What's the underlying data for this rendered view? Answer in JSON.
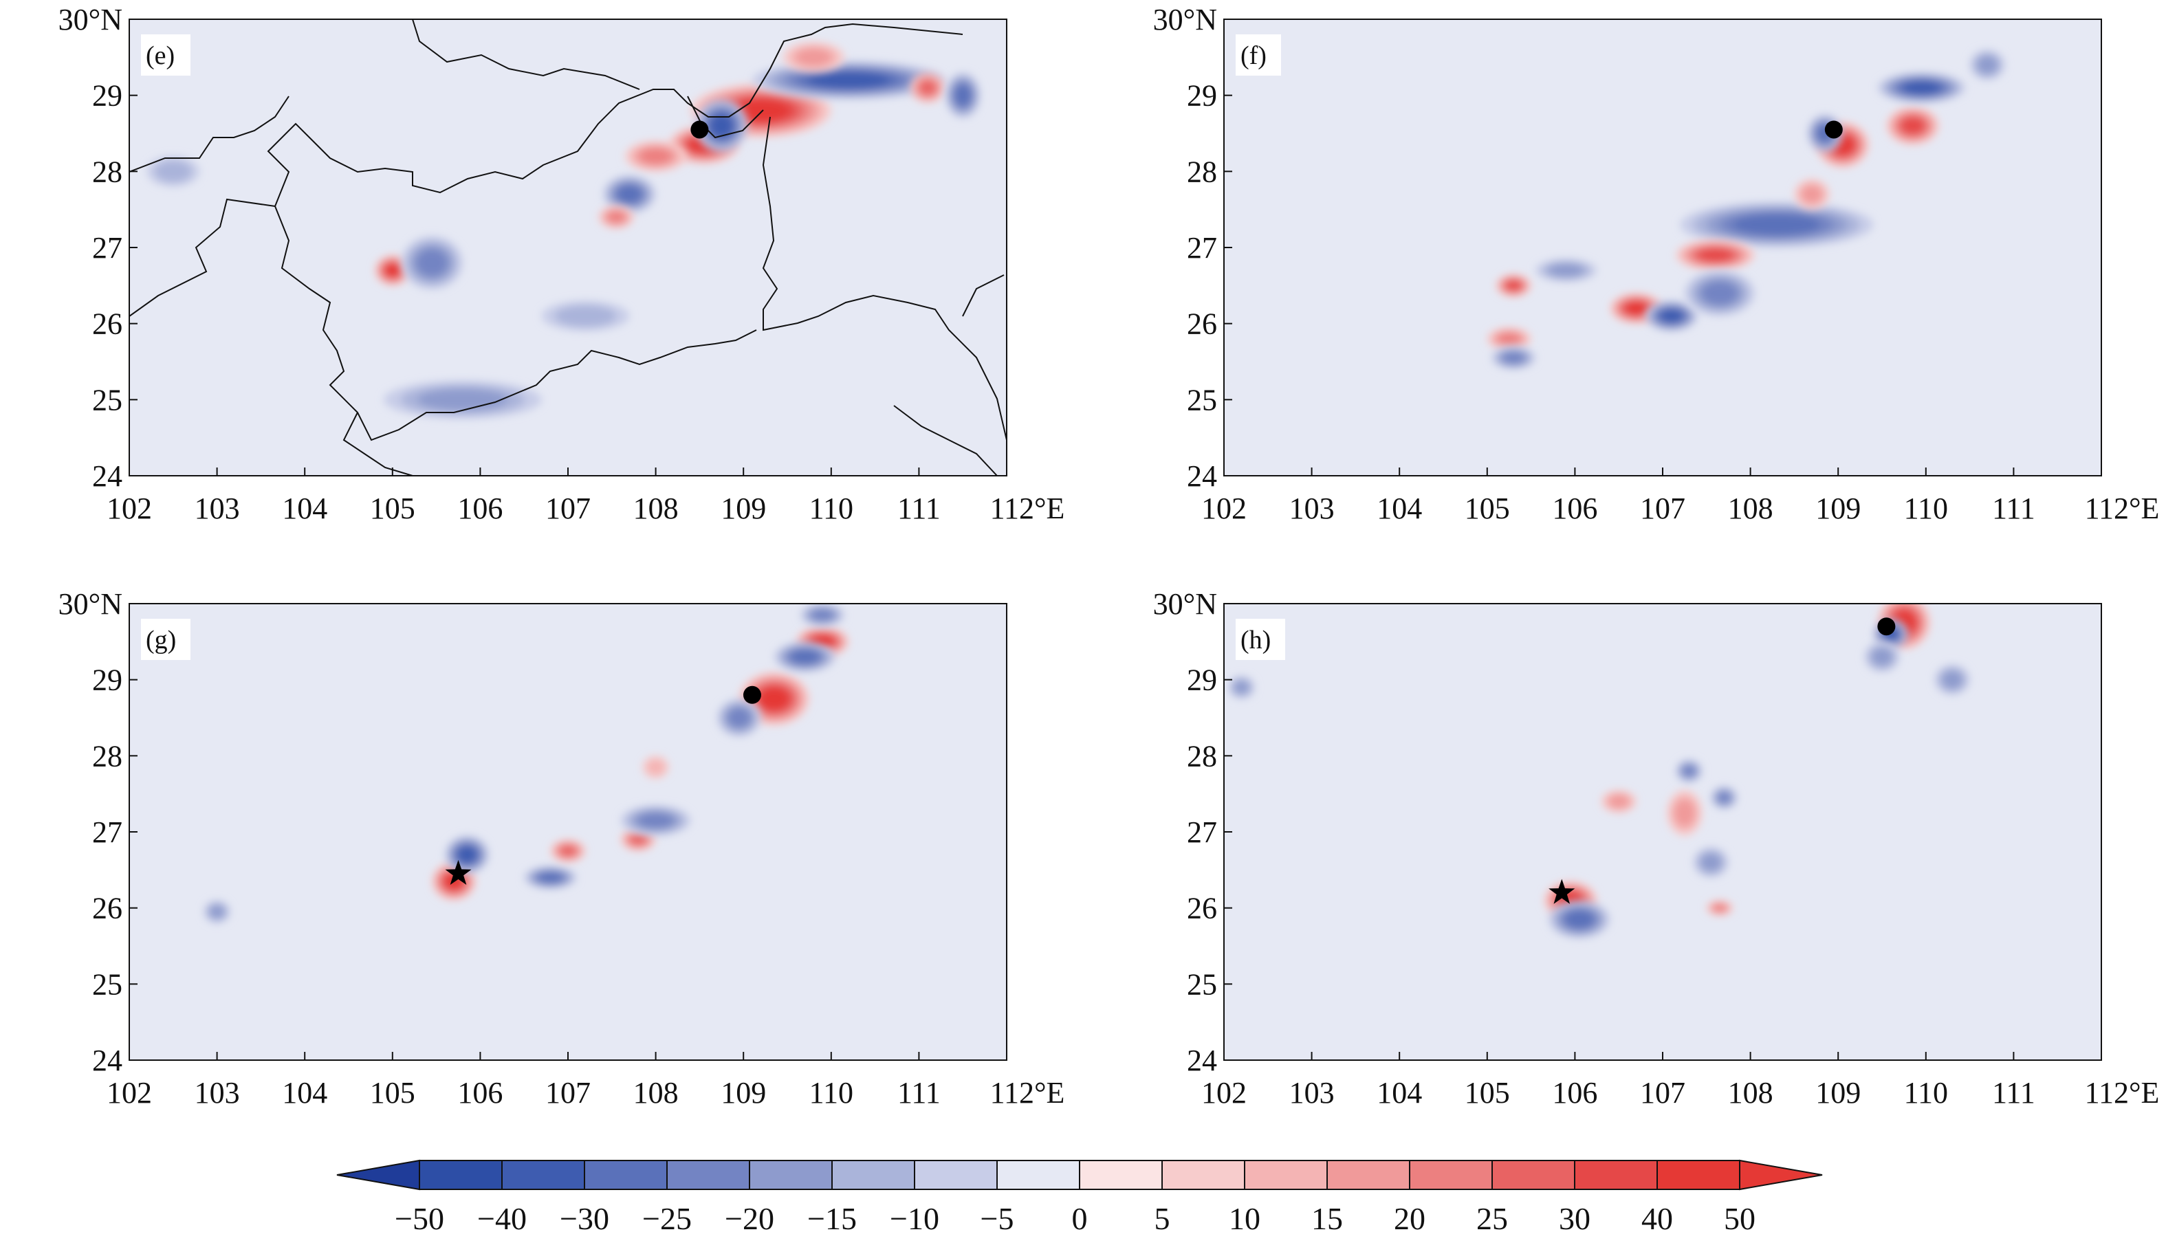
{
  "figure": {
    "axis": {
      "x_ticks": [
        "102",
        "103",
        "104",
        "105",
        "106",
        "107",
        "108",
        "109",
        "110",
        "111",
        "112°E"
      ],
      "y_ticks": [
        "30°N",
        "29",
        "28",
        "27",
        "26",
        "25",
        "24"
      ],
      "lon_range": [
        102,
        112
      ],
      "lat_range": [
        24,
        30
      ]
    },
    "colors": {
      "background": "#e6e9f4",
      "border_line": "#111111",
      "marker": "#000000"
    },
    "panels": [
      {
        "id": "e",
        "label": "(e)",
        "circle_marker": {
          "lon": 108.5,
          "lat": 28.55
        },
        "star_marker": null,
        "features": [
          {
            "lon": 109.2,
            "lat": 28.8,
            "w": 0.8,
            "h": 0.35,
            "value": 40
          },
          {
            "lon": 108.55,
            "lat": 28.35,
            "w": 0.4,
            "h": 0.25,
            "value": 45
          },
          {
            "lon": 108.0,
            "lat": 28.2,
            "w": 0.35,
            "h": 0.2,
            "value": 20
          },
          {
            "lon": 108.75,
            "lat": 28.6,
            "w": 0.3,
            "h": 0.35,
            "value": -30
          },
          {
            "lon": 110.2,
            "lat": 29.2,
            "w": 1.1,
            "h": 0.25,
            "value": -35
          },
          {
            "lon": 111.1,
            "lat": 29.1,
            "w": 0.2,
            "h": 0.2,
            "value": 25
          },
          {
            "lon": 111.5,
            "lat": 29.0,
            "w": 0.2,
            "h": 0.3,
            "value": -25
          },
          {
            "lon": 109.8,
            "lat": 29.5,
            "w": 0.35,
            "h": 0.2,
            "value": 15
          },
          {
            "lon": 107.7,
            "lat": 27.7,
            "w": 0.3,
            "h": 0.25,
            "value": -25
          },
          {
            "lon": 107.55,
            "lat": 27.4,
            "w": 0.2,
            "h": 0.15,
            "value": 20
          },
          {
            "lon": 105.0,
            "lat": 26.7,
            "w": 0.2,
            "h": 0.2,
            "value": 45
          },
          {
            "lon": 105.45,
            "lat": 26.8,
            "w": 0.35,
            "h": 0.35,
            "value": -20
          },
          {
            "lon": 105.8,
            "lat": 25.0,
            "w": 0.9,
            "h": 0.25,
            "value": -15
          },
          {
            "lon": 107.2,
            "lat": 26.1,
            "w": 0.5,
            "h": 0.2,
            "value": -10
          },
          {
            "lon": 102.5,
            "lat": 28.0,
            "w": 0.3,
            "h": 0.2,
            "value": -10
          }
        ]
      },
      {
        "id": "f",
        "label": "(f)",
        "circle_marker": {
          "lon": 108.95,
          "lat": 28.55
        },
        "star_marker": null,
        "features": [
          {
            "lon": 109.05,
            "lat": 28.35,
            "w": 0.3,
            "h": 0.3,
            "value": 40
          },
          {
            "lon": 108.85,
            "lat": 28.5,
            "w": 0.2,
            "h": 0.25,
            "value": -25
          },
          {
            "lon": 109.85,
            "lat": 28.6,
            "w": 0.3,
            "h": 0.25,
            "value": 35
          },
          {
            "lon": 109.95,
            "lat": 29.1,
            "w": 0.5,
            "h": 0.2,
            "value": -30
          },
          {
            "lon": 110.7,
            "lat": 29.4,
            "w": 0.2,
            "h": 0.2,
            "value": -15
          },
          {
            "lon": 108.3,
            "lat": 27.3,
            "w": 1.1,
            "h": 0.3,
            "value": -25
          },
          {
            "lon": 107.6,
            "lat": 26.9,
            "w": 0.45,
            "h": 0.2,
            "value": 35
          },
          {
            "lon": 106.7,
            "lat": 26.2,
            "w": 0.3,
            "h": 0.2,
            "value": 40
          },
          {
            "lon": 107.1,
            "lat": 26.1,
            "w": 0.3,
            "h": 0.2,
            "value": -30
          },
          {
            "lon": 107.65,
            "lat": 26.4,
            "w": 0.4,
            "h": 0.3,
            "value": -20
          },
          {
            "lon": 105.3,
            "lat": 26.5,
            "w": 0.2,
            "h": 0.15,
            "value": 35
          },
          {
            "lon": 105.25,
            "lat": 25.8,
            "w": 0.25,
            "h": 0.15,
            "value": 20
          },
          {
            "lon": 105.3,
            "lat": 25.55,
            "w": 0.25,
            "h": 0.15,
            "value": -20
          },
          {
            "lon": 105.9,
            "lat": 26.7,
            "w": 0.35,
            "h": 0.15,
            "value": -15
          },
          {
            "lon": 108.7,
            "lat": 27.7,
            "w": 0.2,
            "h": 0.2,
            "value": 15
          }
        ]
      },
      {
        "id": "g",
        "label": "(g)",
        "circle_marker": {
          "lon": 109.1,
          "lat": 28.8
        },
        "star_marker": {
          "lon": 105.75,
          "lat": 26.45
        },
        "features": [
          {
            "lon": 109.35,
            "lat": 28.75,
            "w": 0.4,
            "h": 0.35,
            "value": 40
          },
          {
            "lon": 108.95,
            "lat": 28.5,
            "w": 0.25,
            "h": 0.25,
            "value": -20
          },
          {
            "lon": 109.9,
            "lat": 29.5,
            "w": 0.3,
            "h": 0.2,
            "value": 45
          },
          {
            "lon": 109.7,
            "lat": 29.3,
            "w": 0.35,
            "h": 0.2,
            "value": -25
          },
          {
            "lon": 109.9,
            "lat": 29.85,
            "w": 0.25,
            "h": 0.15,
            "value": -20
          },
          {
            "lon": 105.7,
            "lat": 26.35,
            "w": 0.25,
            "h": 0.25,
            "value": 45
          },
          {
            "lon": 105.85,
            "lat": 26.7,
            "w": 0.25,
            "h": 0.25,
            "value": -30
          },
          {
            "lon": 106.8,
            "lat": 26.4,
            "w": 0.3,
            "h": 0.15,
            "value": -25
          },
          {
            "lon": 107.0,
            "lat": 26.75,
            "w": 0.2,
            "h": 0.15,
            "value": 25
          },
          {
            "lon": 107.8,
            "lat": 26.9,
            "w": 0.2,
            "h": 0.15,
            "value": 25
          },
          {
            "lon": 108.0,
            "lat": 27.15,
            "w": 0.4,
            "h": 0.2,
            "value": -20
          },
          {
            "lon": 108.0,
            "lat": 27.85,
            "w": 0.15,
            "h": 0.15,
            "value": 10
          },
          {
            "lon": 103.0,
            "lat": 25.95,
            "w": 0.15,
            "h": 0.15,
            "value": -15
          }
        ]
      },
      {
        "id": "h",
        "label": "(h)",
        "circle_marker": {
          "lon": 109.55,
          "lat": 29.7
        },
        "star_marker": {
          "lon": 105.85,
          "lat": 26.2
        },
        "features": [
          {
            "lon": 109.75,
            "lat": 29.75,
            "w": 0.3,
            "h": 0.35,
            "value": 45
          },
          {
            "lon": 109.6,
            "lat": 29.6,
            "w": 0.2,
            "h": 0.2,
            "value": -30
          },
          {
            "lon": 109.5,
            "lat": 29.3,
            "w": 0.2,
            "h": 0.2,
            "value": -15
          },
          {
            "lon": 105.95,
            "lat": 26.1,
            "w": 0.3,
            "h": 0.25,
            "value": 45
          },
          {
            "lon": 106.05,
            "lat": 25.85,
            "w": 0.35,
            "h": 0.25,
            "value": -25
          },
          {
            "lon": 106.5,
            "lat": 27.4,
            "w": 0.2,
            "h": 0.15,
            "value": 15
          },
          {
            "lon": 107.25,
            "lat": 27.25,
            "w": 0.2,
            "h": 0.3,
            "value": 15
          },
          {
            "lon": 107.3,
            "lat": 27.8,
            "w": 0.15,
            "h": 0.15,
            "value": -20
          },
          {
            "lon": 107.7,
            "lat": 27.45,
            "w": 0.15,
            "h": 0.15,
            "value": -20
          },
          {
            "lon": 107.55,
            "lat": 26.6,
            "w": 0.2,
            "h": 0.2,
            "value": -15
          },
          {
            "lon": 107.65,
            "lat": 26.0,
            "w": 0.15,
            "h": 0.1,
            "value": 20
          },
          {
            "lon": 102.2,
            "lat": 28.9,
            "w": 0.15,
            "h": 0.15,
            "value": -15
          },
          {
            "lon": 110.3,
            "lat": 29.0,
            "w": 0.2,
            "h": 0.2,
            "value": -15
          }
        ]
      }
    ],
    "colorbar": {
      "labels": [
        "−50",
        "−40",
        "−30",
        "−25",
        "−20",
        "−15",
        "−10",
        "−5",
        "0",
        "5",
        "10",
        "15",
        "20",
        "25",
        "30",
        "40",
        "50"
      ],
      "thresholds": [
        -50,
        -40,
        -30,
        -25,
        -20,
        -15,
        -10,
        -5,
        0,
        5,
        10,
        15,
        20,
        25,
        30,
        40,
        50
      ],
      "colors": [
        "#1f3c99",
        "#2d4ea6",
        "#3e5cb0",
        "#5a71ba",
        "#7384c3",
        "#8e9bcd",
        "#aab4da",
        "#c8cde8",
        "#e6e9f4",
        "#fbe4e4",
        "#f7cccc",
        "#f4b4b4",
        "#f09a9a",
        "#ec8080",
        "#e86363",
        "#e54848",
        "#e53935",
        "#e53935"
      ]
    }
  }
}
